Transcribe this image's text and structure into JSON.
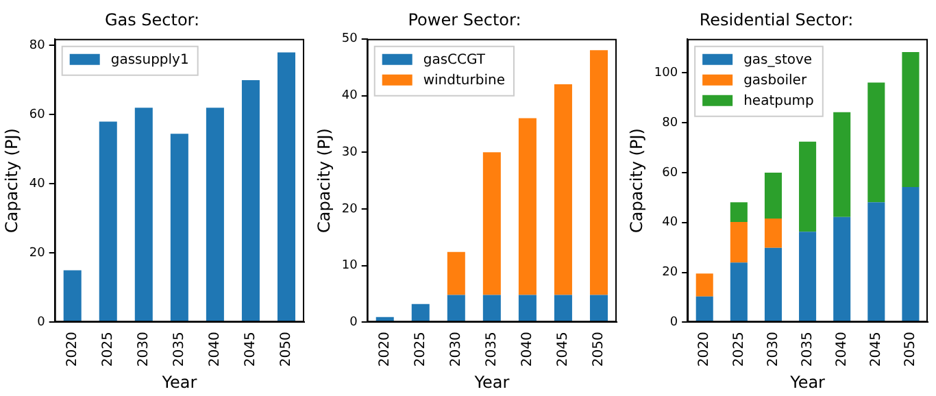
{
  "chart_data": [
    {
      "type": "bar",
      "title": "Gas Sector:",
      "xlabel": "Year",
      "ylabel": "Capacity (PJ)",
      "categories": [
        "2020",
        "2025",
        "2030",
        "2035",
        "2040",
        "2045",
        "2050"
      ],
      "series": [
        {
          "name": "gassupply1",
          "color": "#1f77b4",
          "values": [
            15,
            58,
            62,
            54.5,
            62,
            70,
            78
          ]
        }
      ],
      "ylim": [
        0,
        81.9
      ],
      "yticks": [
        0,
        20,
        40,
        60,
        80
      ],
      "grid": false,
      "legend": "top left"
    },
    {
      "type": "bar",
      "title": "Power Sector:",
      "xlabel": "Year",
      "ylabel": "Capacity (PJ)",
      "categories": [
        "2020",
        "2025",
        "2030",
        "2035",
        "2040",
        "2045",
        "2050"
      ],
      "stacked": true,
      "series": [
        {
          "name": "gasCCGT",
          "color": "#1f77b4",
          "values": [
            0.9,
            3.2,
            4.8,
            4.8,
            4.8,
            4.8,
            4.8
          ]
        },
        {
          "name": "windturbine",
          "color": "#ff7f0e",
          "values": [
            0,
            0,
            7.6,
            25.2,
            31.2,
            37.2,
            43.2
          ]
        }
      ],
      "ylim": [
        0,
        50
      ],
      "yticks": [
        0,
        10,
        20,
        30,
        40,
        50
      ],
      "grid": false,
      "legend": "top left"
    },
    {
      "type": "bar",
      "title": "Residential Sector:",
      "xlabel": "Year",
      "ylabel": "Capacity (PJ)",
      "categories": [
        "2020",
        "2025",
        "2030",
        "2035",
        "2040",
        "2045",
        "2050"
      ],
      "stacked": true,
      "series": [
        {
          "name": "gas_stove",
          "color": "#1f77b4",
          "values": [
            10.3,
            23.9,
            29.8,
            36.3,
            42.2,
            48.1,
            54.2
          ]
        },
        {
          "name": "gasboiler",
          "color": "#ff7f0e",
          "values": [
            9.2,
            16.3,
            11.8,
            0,
            0,
            0,
            0
          ]
        },
        {
          "name": "heatpump",
          "color": "#2ca02c",
          "values": [
            0,
            7.9,
            18.4,
            36.1,
            42,
            48,
            54.1
          ]
        }
      ],
      "ylim": [
        0,
        113.6
      ],
      "yticks": [
        0,
        20,
        40,
        60,
        80,
        100
      ],
      "grid": false,
      "legend": "top left"
    }
  ]
}
